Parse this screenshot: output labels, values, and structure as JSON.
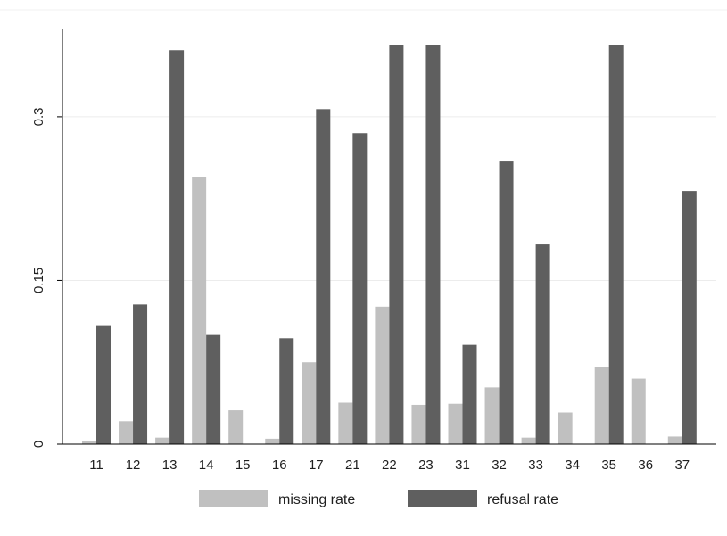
{
  "chart_data": {
    "type": "bar",
    "categories": [
      "11",
      "12",
      "13",
      "14",
      "15",
      "16",
      "17",
      "21",
      "22",
      "23",
      "31",
      "32",
      "33",
      "34",
      "35",
      "36",
      "37"
    ],
    "series": [
      {
        "name": "missing rate",
        "color": "#c0c0c0",
        "values": [
          0.003,
          0.021,
          0.006,
          0.245,
          0.031,
          0.005,
          0.075,
          0.038,
          0.126,
          0.036,
          0.037,
          0.052,
          0.006,
          0.029,
          0.071,
          0.06,
          0.007
        ]
      },
      {
        "name": "refusal rate",
        "color": "#5f5f5f",
        "values": [
          0.109,
          0.128,
          0.361,
          0.1,
          0.0,
          0.097,
          0.307,
          0.285,
          0.366,
          0.366,
          0.091,
          0.259,
          0.183,
          0.0,
          0.366,
          0.0,
          0.232
        ]
      }
    ],
    "yticks": [
      0,
      0.15,
      0.3
    ],
    "ytick_labels": [
      "0",
      "0.15",
      "0.3"
    ],
    "ylim": [
      0,
      0.38
    ],
    "grid": true,
    "legend_position": "bottom",
    "title": "",
    "xlabel": "",
    "ylabel": ""
  }
}
